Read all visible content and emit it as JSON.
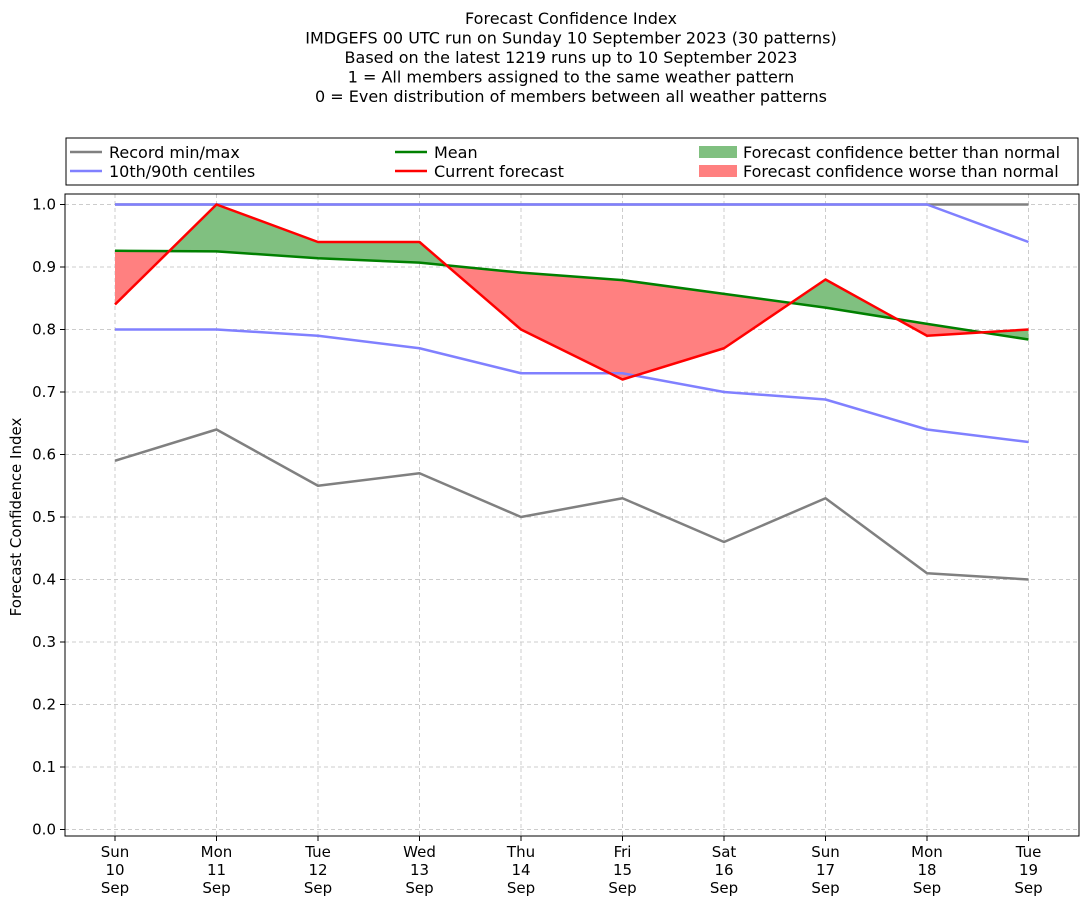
{
  "chart_data": {
    "type": "line",
    "title_lines": [
      "Forecast Confidence Index",
      "IMDGEFS 00 UTC run on Sunday 10 September 2023 (30 patterns)",
      "Based on the latest 1219 runs up to 10 September 2023",
      "1 = All members assigned to the same weather pattern",
      "0 = Even distribution of members between all weather patterns"
    ],
    "ylabel": "Forecast Confidence Index",
    "xlabel": "",
    "ylim": [
      0,
      1.0
    ],
    "yticks": [
      "0.0",
      "0.1",
      "0.2",
      "0.3",
      "0.4",
      "0.5",
      "0.6",
      "0.7",
      "0.8",
      "0.9",
      "1.0"
    ],
    "grid": true,
    "legend_position": "top",
    "categories": [
      [
        "Sun",
        "10",
        "Sep"
      ],
      [
        "Mon",
        "11",
        "Sep"
      ],
      [
        "Tue",
        "12",
        "Sep"
      ],
      [
        "Wed",
        "13",
        "Sep"
      ],
      [
        "Thu",
        "14",
        "Sep"
      ],
      [
        "Fri",
        "15",
        "Sep"
      ],
      [
        "Sat",
        "16",
        "Sep"
      ],
      [
        "Sun",
        "17",
        "Sep"
      ],
      [
        "Mon",
        "18",
        "Sep"
      ],
      [
        "Tue",
        "19",
        "Sep"
      ]
    ],
    "series": [
      {
        "key": "record_max",
        "color": "#808080",
        "values": [
          1.0,
          1.0,
          1.0,
          1.0,
          1.0,
          1.0,
          1.0,
          1.0,
          1.0,
          1.0
        ]
      },
      {
        "key": "record_min",
        "color": "#808080",
        "values": [
          0.59,
          0.64,
          0.55,
          0.57,
          0.5,
          0.53,
          0.46,
          0.53,
          0.41,
          0.4
        ]
      },
      {
        "key": "p90",
        "color": "#8080ff",
        "values": [
          1.0,
          1.0,
          1.0,
          1.0,
          1.0,
          1.0,
          1.0,
          1.0,
          1.0,
          0.94
        ]
      },
      {
        "key": "p10",
        "color": "#8080ff",
        "values": [
          0.8,
          0.8,
          0.79,
          0.77,
          0.73,
          0.73,
          0.7,
          0.688,
          0.64,
          0.62
        ]
      },
      {
        "key": "mean",
        "color": "#008000",
        "values": [
          0.926,
          0.925,
          0.914,
          0.907,
          0.891,
          0.879,
          0.857,
          0.835,
          0.809,
          0.784
        ]
      },
      {
        "key": "current",
        "color": "#ff0000",
        "values": [
          0.84,
          1.0,
          0.94,
          0.94,
          0.8,
          0.72,
          0.77,
          0.88,
          0.79,
          0.8
        ]
      }
    ],
    "fill_colors": {
      "better": "#80c080",
      "worse": "#ff8080"
    },
    "legend": [
      {
        "label": "Record min/max",
        "color": "#808080",
        "kind": "line"
      },
      {
        "label": "10th/90th centiles",
        "color": "#8080ff",
        "kind": "line"
      },
      {
        "label": "Mean",
        "color": "#008000",
        "kind": "line"
      },
      {
        "label": "Current forecast",
        "color": "#ff0000",
        "kind": "line"
      },
      {
        "label": "Forecast confidence better than normal",
        "color": "#80c080",
        "kind": "patch"
      },
      {
        "label": "Forecast confidence worse than normal",
        "color": "#ff8080",
        "kind": "patch"
      }
    ]
  }
}
